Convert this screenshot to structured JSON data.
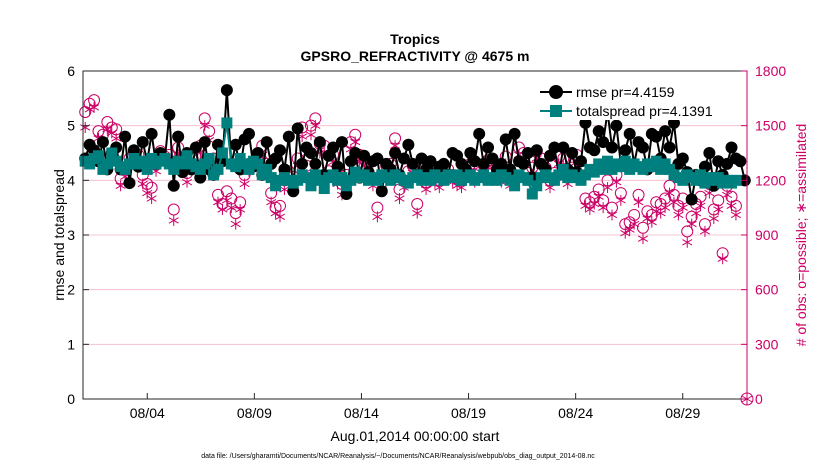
{
  "chart_data": {
    "type": "line",
    "title": "Tropics",
    "subtitle": "GPSRO_REFRACTIVITY @ 4675 m",
    "xlabel": "Aug.01,2014 00:00:00 start",
    "ylabel_left": "rmse and totalspread",
    "ylabel_right": "# of obs: o=possible; ∗=assimilated",
    "footnote": "data file: /Users/gharamti/Documents/NCAR/Reanalysis/~/Documents/NCAR/Reanalysis/webpub/obs_diag_output_2014-08.nc",
    "x_ticks": [
      "08/04",
      "08/09",
      "08/14",
      "08/19",
      "08/24",
      "08/29"
    ],
    "x_tick_days": [
      4,
      9,
      14,
      19,
      24,
      29
    ],
    "xlim_days": [
      1,
      32
    ],
    "ylim_left": [
      0,
      6
    ],
    "yticks_left": [
      "0",
      "1",
      "2",
      "3",
      "4",
      "5",
      "6"
    ],
    "ylim_right": [
      0,
      1800
    ],
    "yticks_right": [
      "0",
      "300",
      "600",
      "900",
      "1200",
      "1500",
      "1800"
    ],
    "legend": [
      "rmse pr=4.4159",
      "totalspread pr=4.1391"
    ],
    "legend_position": "top-right",
    "colors": {
      "rmse": "#000000",
      "spread": "#007f7f",
      "obs": "#cc0066",
      "grid": "#f2b6c6"
    },
    "series": [
      {
        "name": "rmse",
        "values": [
          4.4,
          4.65,
          4.55,
          4.35,
          4.7,
          4.2,
          4.5,
          4.6,
          4.2,
          4.8,
          3.95,
          4.55,
          4.25,
          4.7,
          4.35,
          4.85,
          4.3,
          4.5,
          4.4,
          5.2,
          3.9,
          4.8,
          4.15,
          4.5,
          4.2,
          4.6,
          4.05,
          4.7,
          4.2,
          4.1,
          4.65,
          4.35,
          5.65,
          4.3,
          4.65,
          4.2,
          4.75,
          4.85,
          4.25,
          4.5,
          4.1,
          4.7,
          4.3,
          4.4,
          4.55,
          4.2,
          4.8,
          3.8,
          4.95,
          4.3,
          4.6,
          4.5,
          4.3,
          4.7,
          4.1,
          4.45,
          4.6,
          4.25,
          4.7,
          3.75,
          4.35,
          4.5,
          4.05,
          4.45,
          4.15,
          4.35,
          4.4,
          3.8,
          4.3,
          4.2,
          4.5,
          4.1,
          4.4,
          4.65,
          4.3,
          4.1,
          4.4,
          4.2,
          4.35,
          4.05,
          4.25,
          4.3,
          4.1,
          4.5,
          4.45,
          4.3,
          4.2,
          4.5,
          4.35,
          4.85,
          4.3,
          4.6,
          4.4,
          4.2,
          4.3,
          4.75,
          4.2,
          4.85,
          4.35,
          4.3,
          4.5,
          4.05,
          4.55,
          4.3,
          4.2,
          4.45,
          4.6,
          4.1,
          4.6,
          4.2,
          4.5,
          4.15,
          4.35,
          5.05,
          4.6,
          4.55,
          4.9,
          4.7,
          5.25,
          4.6,
          5.0,
          4.3,
          4.55,
          4.85,
          4.3,
          4.7,
          4.6,
          4.2,
          4.85,
          4.8,
          4.4,
          4.9,
          4.6,
          5.05,
          4.3,
          4.4,
          4.15,
          3.65,
          4.1,
          4.0,
          4.25,
          4.5,
          3.9,
          4.35,
          4.1,
          4.3,
          4.6,
          4.4,
          4.35,
          4.0
        ]
      },
      {
        "name": "totalspread",
        "values": [
          4.35,
          4.3,
          4.4,
          4.45,
          4.2,
          4.3,
          4.5,
          4.35,
          4.25,
          4.2,
          4.3,
          4.4,
          4.3,
          4.35,
          4.2,
          4.4,
          4.3,
          4.35,
          4.4,
          4.3,
          4.2,
          4.35,
          4.3,
          4.45,
          4.3,
          4.25,
          4.2,
          4.3,
          4.4,
          4.1,
          4.2,
          4.5,
          5.05,
          4.3,
          4.25,
          4.4,
          4.3,
          4.2,
          4.35,
          4.3,
          4.1,
          4.2,
          4.05,
          3.9,
          4.0,
          4.05,
          4.0,
          3.95,
          4.0,
          4.1,
          4.05,
          3.9,
          4.1,
          4.0,
          3.85,
          4.05,
          4.1,
          4.0,
          4.05,
          3.9,
          4.0,
          4.15,
          4.05,
          4.1,
          4.0,
          4.05,
          4.0,
          4.1,
          4.05,
          4.0,
          4.1,
          4.05,
          4.0,
          3.95,
          4.05,
          4.1,
          4.0,
          4.05,
          4.0,
          4.1,
          4.05,
          4.0,
          4.1,
          4.05,
          4.1,
          4.0,
          4.05,
          4.1,
          4.0,
          4.05,
          4.1,
          4.0,
          4.05,
          4.0,
          4.1,
          4.05,
          4.0,
          3.9,
          4.1,
          4.05,
          4.0,
          3.75,
          3.9,
          4.05,
          4.1,
          4.05,
          4.0,
          4.1,
          4.2,
          4.05,
          4.1,
          4.05,
          4.0,
          4.1,
          4.2,
          4.15,
          4.3,
          4.2,
          4.35,
          4.2,
          4.3,
          4.25,
          4.35,
          4.2,
          4.3,
          4.25,
          4.2,
          4.3,
          4.25,
          4.35,
          4.2,
          4.3,
          4.2,
          4.1,
          4.05,
          4.0,
          4.1,
          4.05,
          4.0,
          4.1,
          3.95,
          4.05,
          4.0,
          4.05,
          3.95,
          4.0,
          3.95,
          4.0
        ]
      },
      {
        "name": "obs_possible",
        "axis": "right",
        "values": [
          1575,
          1620,
          1640,
          1470,
          1450,
          1520,
          1490,
          1480,
          1210,
          1260,
          1320,
          1350,
          1340,
          1230,
          1180,
          1160,
          1290,
          1360,
          1330,
          1340,
          1040,
          1380,
          1300,
          1240,
          1320,
          1330,
          1390,
          1540,
          1470,
          1320,
          1120,
          1070,
          1140,
          1100,
          1020,
          1080,
          1230,
          1290,
          1300,
          1330,
          1390,
          1290,
          1130,
          1050,
          1060,
          1200,
          1250,
          1220,
          1320,
          1490,
          1280,
          1500,
          1540,
          1400,
          1390,
          1250,
          1340,
          1220,
          1180,
          1230,
          1410,
          1450,
          1340,
          1320,
          1300,
          1210,
          1050,
          1190,
          1280,
          1290,
          1430,
          1150,
          1200,
          1250,
          1280,
          1070,
          1230,
          1190,
          1260,
          1220,
          1200,
          1240,
          1260,
          1230,
          1210,
          1200,
          1250,
          1290,
          1230,
          1240,
          1290,
          1310,
          1240,
          1240,
          1230,
          1330,
          1210,
          1230,
          1380,
          1350,
          1240,
          1270,
          1360,
          1320,
          1270,
          1200,
          1240,
          1330,
          1320,
          1220,
          1270,
          1340,
          1280,
          1100,
          1080,
          1110,
          1150,
          1090,
          1200,
          1050,
          1230,
          1130,
          960,
          970,
          1010,
          1120,
          940,
          1030,
          1010,
          1080,
          1070,
          1100,
          1170,
          1120,
          1060,
          1100,
          920,
          1000,
          1070,
          1110,
          960,
          1180,
          1040,
          1090,
          800,
          1170,
          1110,
          1060
        ]
      },
      {
        "name": "obs_assimilated",
        "axis": "right",
        "values": [
          1490,
          1590,
          1600,
          1430,
          1410,
          1480,
          1460,
          1430,
          1170,
          1220,
          1280,
          1310,
          1290,
          1180,
          1130,
          1100,
          1250,
          1320,
          1290,
          1290,
          980,
          1340,
          1260,
          1190,
          1280,
          1290,
          1350,
          1500,
          1420,
          1270,
          1080,
          1040,
          1090,
          1050,
          960,
          1040,
          1180,
          1250,
          1260,
          1290,
          1340,
          1240,
          1080,
          1020,
          1000,
          1150,
          1200,
          1170,
          1280,
          1440,
          1230,
          1450,
          1500,
          1350,
          1350,
          1200,
          1300,
          1180,
          1120,
          1180,
          1370,
          1410,
          1300,
          1280,
          1260,
          1170,
          1000,
          1150,
          1240,
          1250,
          1390,
          1100,
          1160,
          1210,
          1240,
          1020,
          1190,
          1150,
          1220,
          1180,
          1160,
          1200,
          1220,
          1190,
          1170,
          1160,
          1210,
          1250,
          1190,
          1200,
          1250,
          1270,
          1200,
          1200,
          1190,
          1290,
          1170,
          1190,
          1340,
          1310,
          1200,
          1230,
          1320,
          1280,
          1230,
          1160,
          1200,
          1290,
          1280,
          1180,
          1230,
          1300,
          1240,
          1060,
          1040,
          1070,
          1110,
          1050,
          1160,
          1010,
          1190,
          1090,
          910,
          930,
          960,
          1080,
          880,
          990,
          970,
          1030,
          1020,
          1050,
          1130,
          1080,
          1010,
          1050,
          860,
          960,
          1020,
          1060,
          920,
          1130,
          990,
          1040,
          770,
          1120,
          1060,
          1010
        ]
      }
    ]
  }
}
